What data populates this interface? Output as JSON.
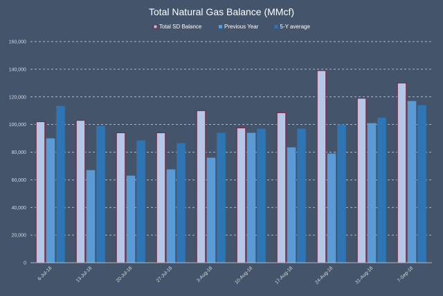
{
  "chart_data": {
    "type": "bar",
    "title": "Total Natural Gas Balance (MMcf)",
    "xlabel": "",
    "ylabel": "",
    "ylim": [
      0,
      160000
    ],
    "yticks": [
      "0",
      "20,000",
      "40,000",
      "60,000",
      "80,000",
      "100,000",
      "120,000",
      "140,000",
      "160,000"
    ],
    "categories": [
      "6-Jul-18",
      "13-Jul-18",
      "20-Jul-18",
      "27-Jul-18",
      "3-Aug-18",
      "10-Aug-18",
      "17-Aug-18",
      "24-Aug-18",
      "31-Aug-18",
      "7-Sep-18"
    ],
    "grid": true,
    "legend_position": "top-right",
    "series": [
      {
        "name": "Total SD Balance",
        "color": "#b4c7e7",
        "border": "#7b1f3a",
        "values": [
          102000,
          103000,
          94000,
          94000,
          110000,
          97500,
          108500,
          139000,
          119000,
          130000
        ]
      },
      {
        "name": "Previous Year",
        "color": "#5b9bd5",
        "values": [
          90000,
          67000,
          63000,
          67500,
          76000,
          94000,
          83500,
          79000,
          101000,
          117000
        ]
      },
      {
        "name": "5-Y average",
        "color": "#2e75b6",
        "values": [
          113500,
          99000,
          88500,
          86500,
          94000,
          97000,
          97000,
          100000,
          105000,
          114000
        ]
      }
    ]
  }
}
